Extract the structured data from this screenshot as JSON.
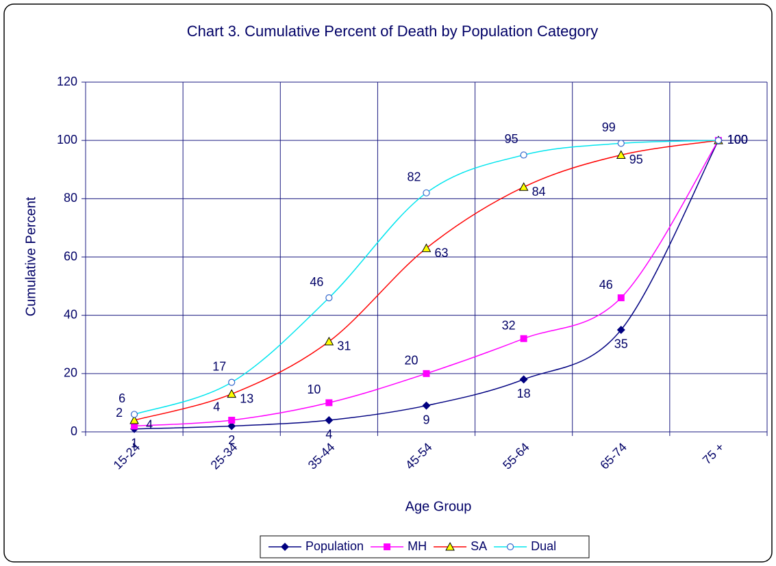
{
  "chart_data": {
    "type": "line",
    "title": "Chart 3. Cumulative Percent of Death by Population Category",
    "x_label": "Age Group",
    "y_label": "Cumulative Percent",
    "categories": [
      "15-24",
      "25-34",
      "35-44",
      "45-54",
      "55-64",
      "65-74",
      "75 +"
    ],
    "series": [
      {
        "name": "Population",
        "color": "#000080",
        "values": [
          1,
          2,
          4,
          9,
          18,
          35,
          100
        ]
      },
      {
        "name": "MH",
        "color": "#ff00ff",
        "values": [
          2,
          4,
          10,
          20,
          32,
          46,
          100
        ]
      },
      {
        "name": "SA",
        "color": "#ff0000",
        "values": [
          4,
          13,
          31,
          63,
          84,
          95,
          100
        ]
      },
      {
        "name": "Dual",
        "color": "#00e5ee",
        "values": [
          6,
          17,
          46,
          82,
          95,
          99,
          100
        ]
      }
    ],
    "ylim": [
      0,
      120
    ],
    "yticks": [
      0,
      20,
      40,
      60,
      80,
      100,
      120
    ],
    "grid": true,
    "legend": "bottom"
  }
}
